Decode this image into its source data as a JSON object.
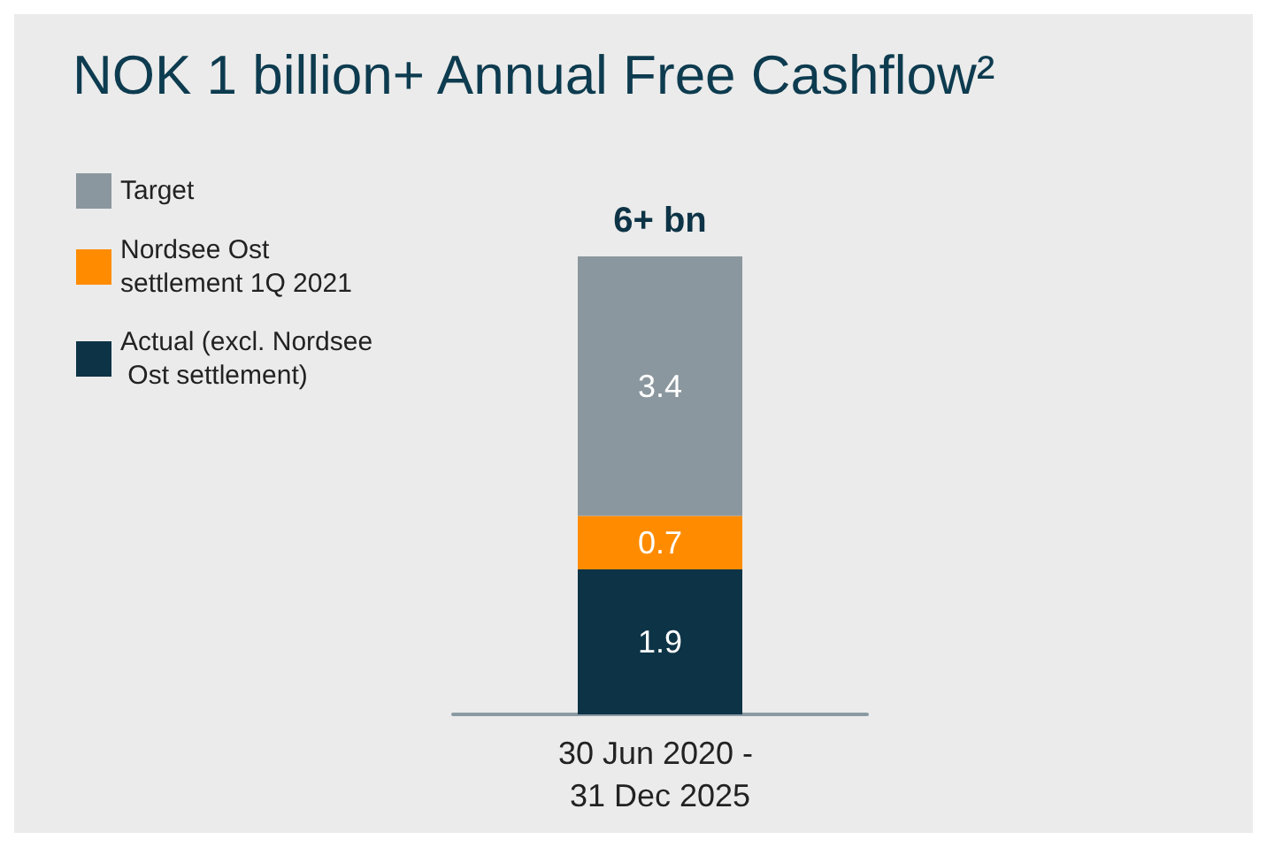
{
  "chart_data": {
    "type": "bar",
    "title": "NOK 1 billion+ Annual Free Cashflow²",
    "categories": [
      "30 Jun 2020 - 31 Dec 2025"
    ],
    "stacked": true,
    "data_labels": true,
    "legend": "top left",
    "grid": false,
    "totals": [
      "6+ bn"
    ],
    "series": [
      {
        "name": "Actual (excl. Nordsee Ost settlement)",
        "color": "#0d3346",
        "values": [
          1.9
        ]
      },
      {
        "name": "Nordsee Ost settlement 1Q 2021",
        "color": "#ff8c00",
        "values": [
          0.7
        ]
      },
      {
        "name": "Target",
        "color": "#8b979e",
        "values": [
          3.4
        ]
      }
    ]
  }
}
